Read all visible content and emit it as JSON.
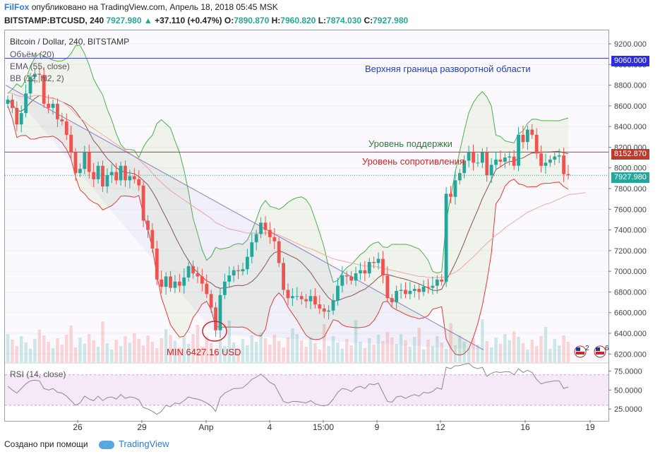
{
  "header": {
    "brand": "FilFox",
    "published": "опубликовано на TradingView.com, Апрель 18, 2018 05:45 MSK",
    "symbol": "BITSTAMP:BTCUSD, 240",
    "last": "7927.980",
    "change": "+37.110 (+0.47%)",
    "open_label": "O:",
    "open": "7890.870",
    "high_label": "H:",
    "high": "7960.820",
    "low_label": "L:",
    "low": "7874.030",
    "close_label": "C:",
    "close": "7927.980"
  },
  "legend": {
    "title": "Bitcoin / Dollar, 240, BITSTAMP",
    "volume": "Объём (20)",
    "ema": "EMA (55, close)",
    "bb": "BB (12, hl2, 2)",
    "rsi": "RSI (14, close)"
  },
  "annotations": {
    "resistance_top": "Верхняя граница разворотной области",
    "support": "Уровень поддержки",
    "resistance": "Уровень сопротивления",
    "min": "MIN 6427.16 USD"
  },
  "price_labels": {
    "blue_line": "9060.000",
    "red_line": "8152.870",
    "last": "7927.980"
  },
  "badges": {
    "a": "2",
    "b": "6"
  },
  "footer": {
    "created": "Создано при помощи",
    "tv": "TradingView"
  },
  "colors": {
    "up": "#26a69a",
    "down": "#ef5350",
    "brand": "#2e7bcf",
    "blue_line": "#3f3fd8",
    "red_line": "#c0392b"
  },
  "chart_data": {
    "type": "candlestick",
    "title": "Bitcoin / Dollar, 240, BITSTAMP",
    "y_ticks": [
      "9200.000",
      "9000.000",
      "8800.000",
      "8600.000",
      "8400.000",
      "8200.000",
      "8000.000",
      "7800.000",
      "7600.000",
      "7400.000",
      "7200.000",
      "7000.000",
      "6800.000",
      "6600.000",
      "6400.000",
      "6200.000"
    ],
    "x_ticks": [
      "26",
      "29",
      "Апр",
      "4",
      "15:00",
      "9",
      "12",
      "16",
      "19"
    ],
    "ylim": [
      6120,
      9330
    ],
    "horizontal_levels": [
      {
        "value": 9060,
        "color": "#3f3fd8"
      },
      {
        "value": 8152.87,
        "color": "#c0392b"
      }
    ],
    "price_series": [
      8660,
      8580,
      8420,
      8530,
      8720,
      8880,
      8910,
      8900,
      8620,
      8580,
      8620,
      8470,
      8450,
      8320,
      8150,
      7950,
      7990,
      8150,
      7960,
      7890,
      8020,
      7820,
      7930,
      7960,
      7880,
      8020,
      7880,
      7920,
      7890,
      7830,
      7490,
      7400,
      7220,
      6920,
      6850,
      6950,
      6840,
      6900,
      6860,
      6940,
      7050,
      6980,
      6950,
      6880,
      6780,
      6650,
      6430,
      6770,
      6900,
      6960,
      7010,
      7000,
      7020,
      7140,
      7280,
      7360,
      7470,
      7400,
      7330,
      7290,
      7080,
      6820,
      6740,
      6760,
      6760,
      6730,
      6710,
      6760,
      6680,
      6640,
      6610,
      6620,
      6720,
      6860,
      6960,
      6950,
      6910,
      6980,
      7010,
      6980,
      7090,
      7080,
      7120,
      6960,
      6740,
      6700,
      6810,
      6820,
      6780,
      6810,
      6830,
      6800,
      6850,
      6840,
      6860,
      6920,
      6900,
      7750,
      7720,
      7880,
      7950,
      8070,
      8150,
      8050,
      8050,
      8150,
      7930,
      8030,
      8080,
      8060,
      8100,
      8110,
      8020,
      8320,
      8250,
      8370,
      8320,
      8140,
      8020,
      8050,
      8080,
      8110,
      8120,
      7940,
      7928
    ],
    "ema55": [
      8730,
      8720,
      8700,
      8690,
      8690,
      8690,
      8700,
      8700,
      8690,
      8680,
      8670,
      8660,
      8640,
      8610,
      8570,
      8520,
      8480,
      8450,
      8410,
      8380,
      8350,
      8320,
      8290,
      8260,
      8230,
      8200,
      8170,
      8140,
      8110,
      8080,
      8040,
      8000,
      7950,
      7900,
      7860,
      7820,
      7780,
      7750,
      7720,
      7690,
      7660,
      7630,
      7600,
      7570,
      7540,
      7510,
      7470,
      7450,
      7430,
      7410,
      7400,
      7390,
      7380,
      7370,
      7370,
      7370,
      7370,
      7370,
      7370,
      7360,
      7350,
      7330,
      7310,
      7290,
      7270,
      7250,
      7230,
      7220,
      7200,
      7180,
      7160,
      7140,
      7120,
      7110,
      7100,
      7090,
      7080,
      7070,
      7060,
      7050,
      7050,
      7050,
      7040,
      7030,
      7020,
      7010,
      7000,
      6990,
      6980,
      6970,
      6960,
      6950,
      6950,
      6940,
      6940,
      6940,
      6940,
      6950,
      6970,
      6990,
      7020,
      7060,
      7100,
      7140,
      7180,
      7230,
      7270,
      7310,
      7350,
      7380,
      7420,
      7450,
      7480,
      7510,
      7540,
      7570,
      7590,
      7610,
      7630,
      7650,
      7660,
      7680,
      7700,
      7720,
      7740
    ],
    "rsi": {
      "levels": [
        70,
        30
      ],
      "ticks": [
        "75.0000",
        "50.0000",
        "25.0000"
      ],
      "values": [
        55,
        50,
        46,
        52,
        58,
        62,
        63,
        62,
        52,
        50,
        52,
        47,
        46,
        42,
        36,
        30,
        33,
        42,
        38,
        36,
        42,
        36,
        40,
        41,
        38,
        44,
        39,
        41,
        40,
        37,
        27,
        25,
        22,
        18,
        22,
        30,
        28,
        33,
        32,
        36,
        41,
        39,
        38,
        36,
        33,
        29,
        22,
        40,
        46,
        49,
        52,
        52,
        53,
        58,
        64,
        67,
        71,
        66,
        60,
        57,
        46,
        35,
        33,
        35,
        35,
        34,
        33,
        36,
        32,
        30,
        29,
        31,
        38,
        47,
        52,
        51,
        48,
        53,
        55,
        52,
        58,
        57,
        59,
        47,
        35,
        34,
        41,
        42,
        39,
        42,
        44,
        42,
        47,
        46,
        48,
        53,
        51,
        80,
        78,
        82,
        82,
        84,
        85,
        80,
        78,
        80,
        68,
        72,
        74,
        73,
        74,
        74,
        70,
        78,
        73,
        76,
        73,
        64,
        58,
        60,
        61,
        62,
        62,
        52,
        54
      ]
    }
  }
}
